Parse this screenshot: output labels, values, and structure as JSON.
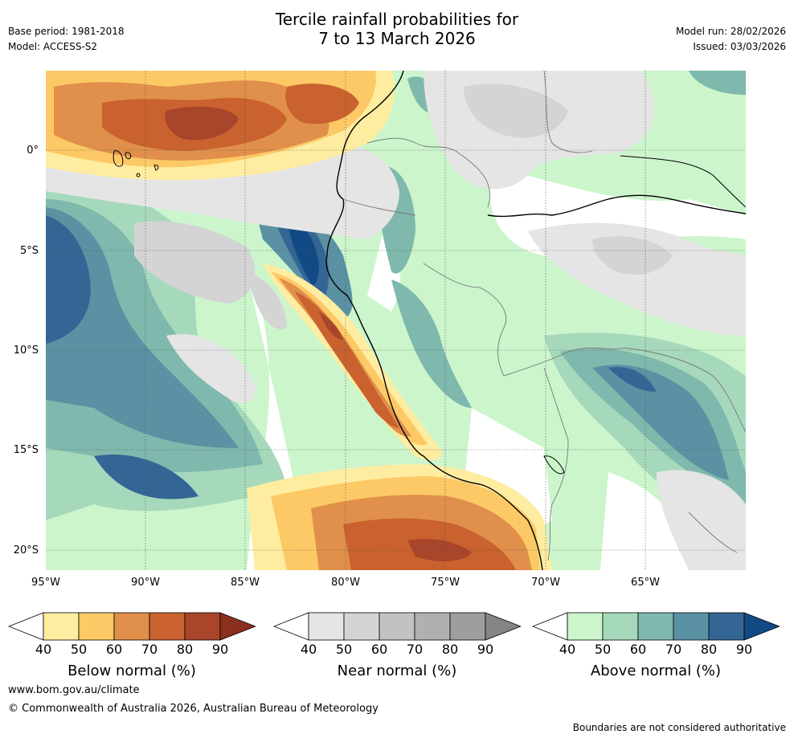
{
  "header": {
    "title_line1": "Tercile rainfall probabilities for",
    "title_line2": "7 to 13 March 2026",
    "base_period": "Base period: 1981-2018",
    "model": "Model: ACCESS-S2",
    "model_run": "Model run: 28/02/2026",
    "issued": "Issued: 03/03/2026"
  },
  "map": {
    "lat_labels": [
      "0°",
      "5°S",
      "10°S",
      "15°S",
      "20°S"
    ],
    "lon_labels": [
      "95°W",
      "90°W",
      "85°W",
      "80°W",
      "75°W",
      "70°W",
      "65°W"
    ],
    "extent": {
      "lon_min": -95,
      "lon_max": -60,
      "lat_min": -21,
      "lat_max": 4
    }
  },
  "legend": {
    "ticks": [
      "40",
      "50",
      "60",
      "70",
      "80",
      "90"
    ],
    "below": {
      "label": "Below normal (%)",
      "colors": [
        "#ffffff",
        "#feeda0",
        "#fdc966",
        "#e0904a",
        "#c9622f",
        "#a8452a",
        "#8b2f1f"
      ]
    },
    "near": {
      "label": "Near normal (%)",
      "colors": [
        "#ffffff",
        "#e5e5e5",
        "#d4d4d4",
        "#c2c2c2",
        "#b0b0b0",
        "#9e9e9e",
        "#858585"
      ]
    },
    "above": {
      "label": "Above normal (%)",
      "colors": [
        "#ffffff",
        "#ccf5cc",
        "#a6d9bc",
        "#7fb8ad",
        "#5a92a3",
        "#346695",
        "#124a86"
      ]
    }
  },
  "footer": {
    "url": "www.bom.gov.au/climate",
    "copyright": "© Commonwealth of Australia 2026, Australian Bureau of Meteorology",
    "disclaimer": "Boundaries are not considered authoritative"
  }
}
